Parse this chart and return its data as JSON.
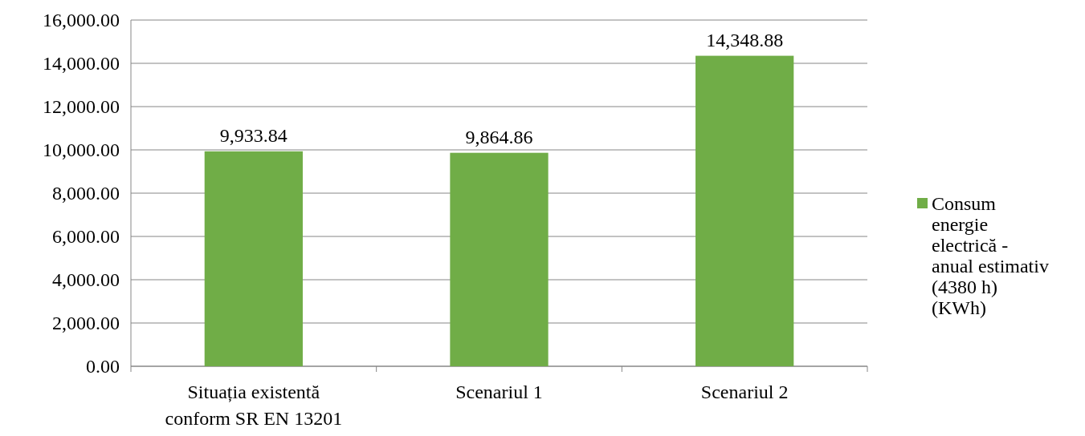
{
  "chart_data": {
    "type": "bar",
    "categories": [
      "Situația existentă conform SR EN 13201",
      "Scenariul 1",
      "Scenariul 2"
    ],
    "series": [
      {
        "name": "Consum energie electrică - anual estimativ (4380 h) (KWh)",
        "color": "#70ad47",
        "values": [
          9933.84,
          9864.86,
          14348.88
        ],
        "value_labels": [
          "9,933.84",
          "9,864.86",
          "14,348.88"
        ]
      }
    ],
    "ylim": [
      0,
      16000
    ],
    "yticks": [
      {
        "value": 0,
        "label": "0.00"
      },
      {
        "value": 2000,
        "label": "2,000.00"
      },
      {
        "value": 4000,
        "label": "4,000.00"
      },
      {
        "value": 6000,
        "label": "6,000.00"
      },
      {
        "value": 8000,
        "label": "8,000.00"
      },
      {
        "value": 10000,
        "label": "10,000.00"
      },
      {
        "value": 12000,
        "label": "12,000.00"
      },
      {
        "value": 14000,
        "label": "14,000.00"
      },
      {
        "value": 16000,
        "label": "16,000.00"
      }
    ],
    "grid": true,
    "legend": "right"
  }
}
